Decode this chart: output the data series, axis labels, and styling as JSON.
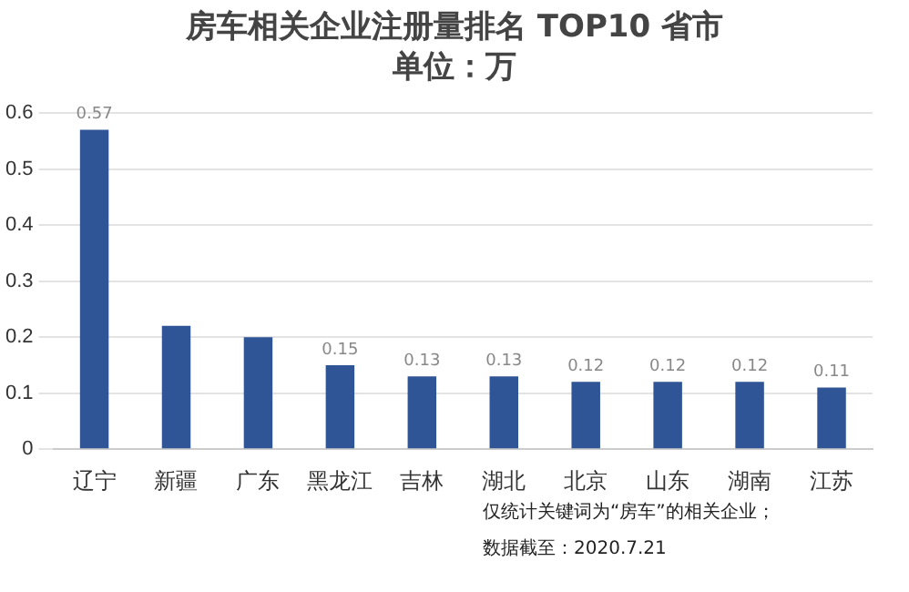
{
  "chart_data": {
    "type": "bar",
    "title": "房车相关企业注册量排名 TOP10 省市",
    "subtitle": "单位：万",
    "categories": [
      "辽宁",
      "新疆",
      "广东",
      "黑龙江",
      "吉林",
      "湖北",
      "北京",
      "山东",
      "湖南",
      "江苏"
    ],
    "values": [
      0.57,
      0.22,
      0.2,
      0.15,
      0.13,
      0.13,
      0.12,
      0.12,
      0.12,
      0.11
    ],
    "value_labels": [
      "0.57",
      null,
      null,
      "0.15",
      "0.13",
      "0.13",
      "0.12",
      "0.12",
      "0.12",
      "0.11"
    ],
    "color": "#2f5597",
    "ylim": [
      0,
      0.6
    ],
    "yticks": [
      0,
      0.1,
      0.2,
      0.3,
      0.4,
      0.5,
      0.6
    ],
    "grid": "y",
    "annotations": [
      "仅统计关键词为“房车”的相关企业；",
      "数据截至：2020.7.21"
    ]
  }
}
